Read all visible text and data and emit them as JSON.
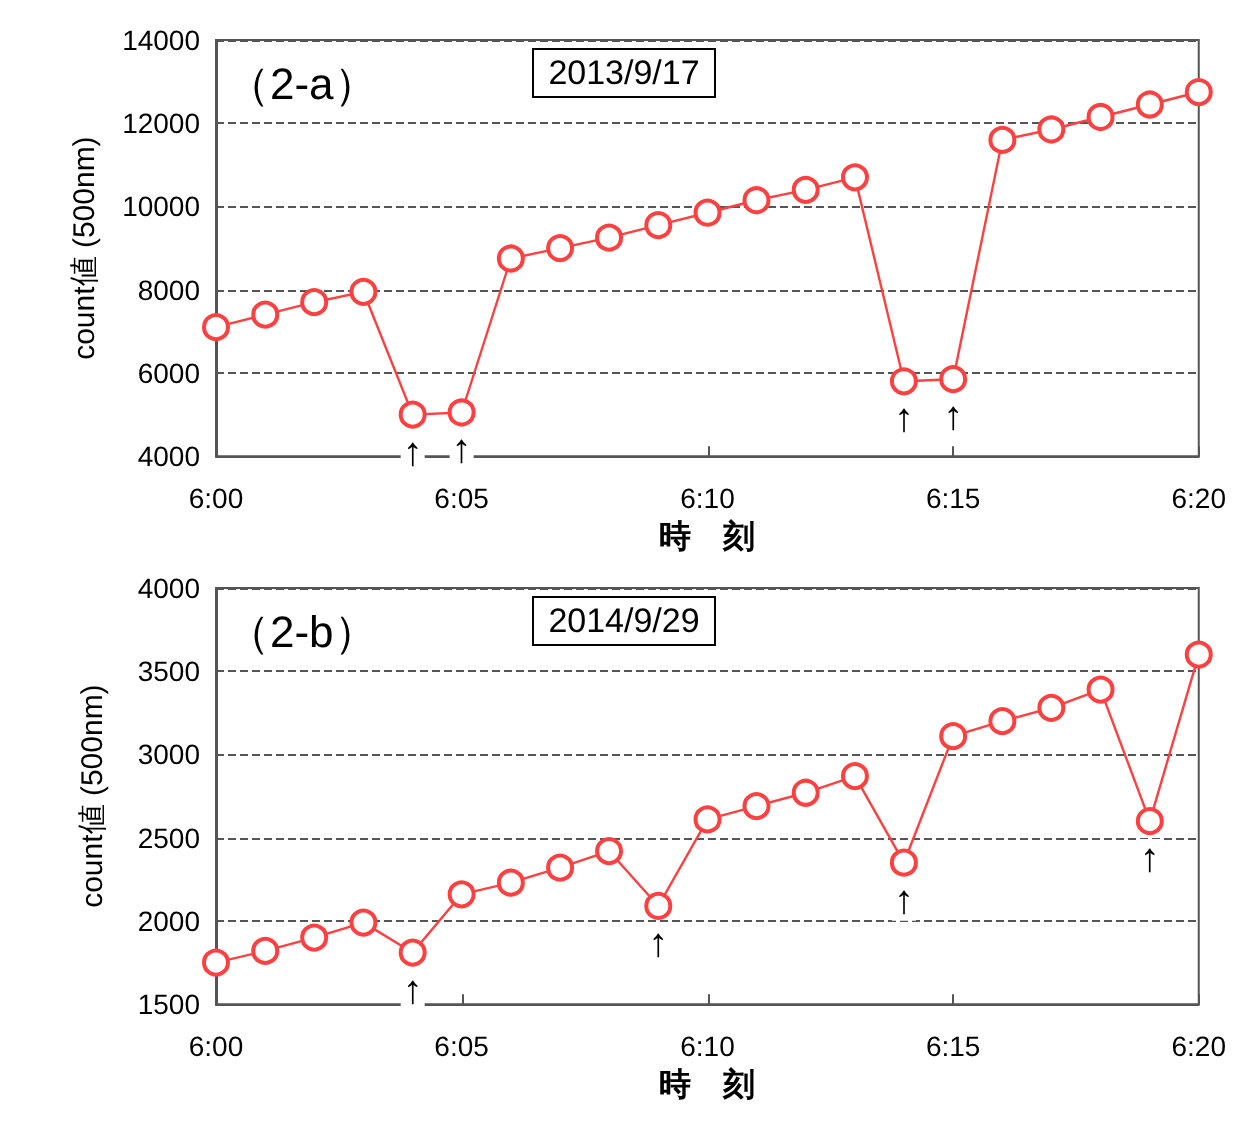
{
  "chart_data": [
    {
      "type": "line",
      "title": "（2-a）",
      "subtitle": "2013/9/17",
      "xlabel": "時　刻",
      "ylabel": "count値 (500nm)",
      "x": [
        6,
        6.0167,
        6.0333,
        6.05,
        6.0667,
        6.0833,
        6.1,
        6.1167,
        6.1333,
        6.15,
        6.1667,
        6.1833,
        6.2,
        6.2167,
        6.2333,
        6.25,
        6.2667,
        6.2833,
        6.3,
        6.3167,
        6.3333
      ],
      "series": [
        {
          "color": "#ff4040",
          "values": [
            7100,
            7400,
            7700,
            7950,
            5000,
            5050,
            8750,
            9000,
            9250,
            9550,
            9850,
            10150,
            10400,
            10700,
            5800,
            5850,
            11600,
            11850,
            12150,
            12450,
            12750
          ]
        }
      ],
      "xlim": [
        6,
        6.3333
      ],
      "xticks": [
        {
          "value": 6,
          "label": "6:00"
        },
        {
          "value": 6.0833,
          "label": "6:05"
        },
        {
          "value": 6.1667,
          "label": "6:10"
        },
        {
          "value": 6.25,
          "label": "6:15"
        },
        {
          "value": 6.3333,
          "label": "6:20"
        }
      ],
      "ylim": [
        4000,
        14000
      ],
      "yticks": [
        4000,
        6000,
        8000,
        10000,
        12000,
        14000
      ],
      "grid": "y",
      "marker": "circle",
      "line_style": "solid",
      "annotations": [
        {
          "text": "↑",
          "x": 6.0667,
          "y": 5000
        },
        {
          "text": "↑",
          "x": 6.0833,
          "y": 5050
        },
        {
          "text": "↑",
          "x": 6.2333,
          "y": 5800
        },
        {
          "text": "↑",
          "x": 6.25,
          "y": 5850
        }
      ]
    },
    {
      "type": "line",
      "title": "（2-b）",
      "subtitle": "2014/9/29",
      "xlabel": "時　刻",
      "ylabel": "count値 (500nm)",
      "x": [
        6,
        6.0167,
        6.0333,
        6.05,
        6.0667,
        6.0833,
        6.1,
        6.1167,
        6.1333,
        6.15,
        6.1667,
        6.1833,
        6.2,
        6.2167,
        6.2333,
        6.25,
        6.2667,
        6.2833,
        6.3,
        6.3167,
        6.3333
      ],
      "series": [
        {
          "color": "#ff4040",
          "values": [
            1750,
            1820,
            1900,
            1990,
            1810,
            2160,
            2230,
            2320,
            2420,
            2090,
            2610,
            2690,
            2770,
            2870,
            2350,
            3110,
            3200,
            3280,
            3390,
            2600,
            3600
          ]
        }
      ],
      "xlim": [
        6,
        6.3333
      ],
      "xticks": [
        {
          "value": 6,
          "label": "6:00"
        },
        {
          "value": 6.0833,
          "label": "6:05"
        },
        {
          "value": 6.1667,
          "label": "6:10"
        },
        {
          "value": 6.25,
          "label": "6:15"
        },
        {
          "value": 6.3333,
          "label": "6:20"
        }
      ],
      "ylim": [
        1500,
        4000
      ],
      "yticks": [
        1500,
        2000,
        2500,
        3000,
        3500,
        4000
      ],
      "grid": "y",
      "marker": "circle",
      "line_style": "solid",
      "annotations": [
        {
          "text": "↑",
          "x": 6.0667,
          "y": 1810
        },
        {
          "text": "↑",
          "x": 6.15,
          "y": 2090
        },
        {
          "text": "↑",
          "x": 6.2333,
          "y": 2350
        },
        {
          "text": "↑",
          "x": 6.3167,
          "y": 2600
        }
      ]
    }
  ]
}
